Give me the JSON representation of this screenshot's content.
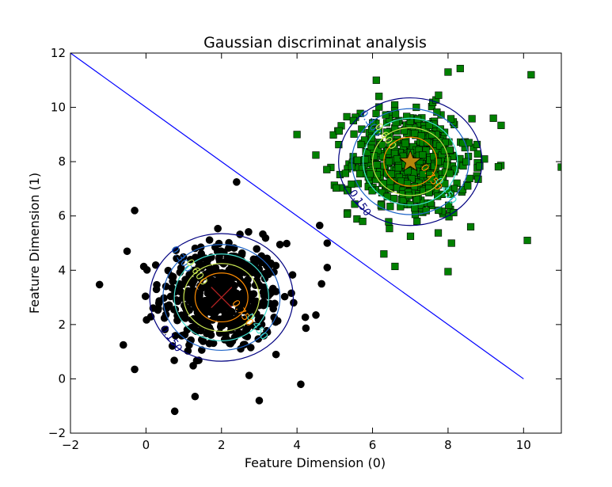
{
  "chart_data": {
    "type": "scatter",
    "title": "Gaussian discriminat analysis",
    "xlabel": "Feature Dimension (0)",
    "ylabel": "Feature Dimension (1)",
    "xlim": [
      -2,
      11
    ],
    "ylim": [
      -2,
      12
    ],
    "xticks": [
      -2,
      0,
      2,
      4,
      6,
      8,
      10
    ],
    "yticks": [
      -2,
      0,
      2,
      4,
      6,
      8,
      10,
      12
    ],
    "grid": false,
    "decision_boundary": {
      "from": [
        -2,
        12
      ],
      "to": [
        10,
        0
      ],
      "color": "#0000ff"
    },
    "classes": [
      {
        "marker": "circle",
        "color": "#000000",
        "count": 500,
        "mean": [
          2,
          3
        ],
        "std": [
          0.8,
          1.0
        ],
        "center_marker": "x",
        "center_color": "#b22222",
        "center_size": 26,
        "outliers": [
          [
            2.4,
            7.25
          ],
          [
            -0.3,
            6.2
          ],
          [
            -0.5,
            4.7
          ],
          [
            -0.6,
            1.25
          ],
          [
            -0.3,
            0.35
          ],
          [
            1.3,
            -0.65
          ],
          [
            3,
            -0.8
          ],
          [
            4.1,
            -0.2
          ],
          [
            4.5,
            2.35
          ],
          [
            4.65,
            3.5
          ],
          [
            4.8,
            4.1
          ],
          [
            4.6,
            5.65
          ],
          [
            4.8,
            5
          ]
        ],
        "contours": [
          {
            "level": 0.15,
            "rx": 1.9,
            "ry": 2.35,
            "color": "#000080",
            "label": "0.150"
          },
          {
            "level": 0.3,
            "rx": 1.55,
            "ry": 1.95,
            "color": "#1e64c8",
            "label": "0.300"
          },
          {
            "level": 0.45,
            "rx": 1.25,
            "ry": 1.6,
            "color": "#40e0d0",
            "label": "0.450"
          },
          {
            "level": 0.6,
            "rx": 1.0,
            "ry": 1.25,
            "color": "#c8e650",
            "label": "0.600"
          },
          {
            "level": 0.75,
            "rx": 0.7,
            "ry": 0.9,
            "color": "#ff8c00",
            "label": "0.750"
          }
        ]
      },
      {
        "marker": "square",
        "color": "#008000",
        "count": 500,
        "mean": [
          7,
          8
        ],
        "std": [
          0.8,
          1.0
        ],
        "center_marker": "star",
        "center_color": "#b8860b",
        "center_size": 14,
        "outliers": [
          [
            4,
            9
          ],
          [
            10.2,
            11.2
          ],
          [
            11,
            7.8
          ],
          [
            10.1,
            5.1
          ],
          [
            8,
            3.95
          ],
          [
            6.3,
            4.6
          ],
          [
            8.6,
            5.6
          ],
          [
            9.2,
            9.6
          ],
          [
            6.1,
            11
          ],
          [
            8,
            11.3
          ]
        ],
        "contours": [
          {
            "level": 0.15,
            "rx": 1.9,
            "ry": 2.35,
            "color": "#000080",
            "label": "0.150"
          },
          {
            "level": 0.3,
            "rx": 1.55,
            "ry": 1.95,
            "color": "#1e64c8",
            "label": "0.300"
          },
          {
            "level": 0.45,
            "rx": 1.25,
            "ry": 1.6,
            "color": "#40e0d0",
            "label": "0.450"
          },
          {
            "level": 0.6,
            "rx": 1.0,
            "ry": 1.25,
            "color": "#c8e650",
            "label": "0.600"
          },
          {
            "level": 0.75,
            "rx": 0.7,
            "ry": 0.9,
            "color": "#ff8c00",
            "label": "0.750"
          }
        ]
      }
    ]
  }
}
